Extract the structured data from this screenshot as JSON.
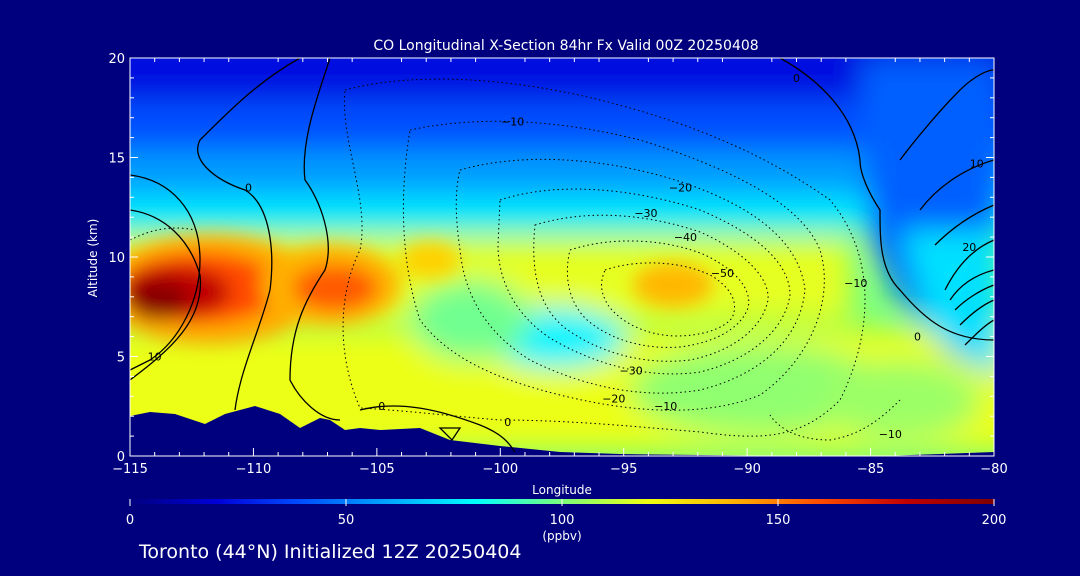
{
  "chart_data": {
    "type": "heatmap",
    "title": "CO Longitudinal X-Section 84hr  Fx Valid 00Z 20250408",
    "xlabel": "Longitude",
    "ylabel": "Altitude (km)",
    "xlim": [
      -115,
      -80
    ],
    "ylim": [
      0,
      20
    ],
    "x_ticks": [
      "-115",
      "-110",
      "-105",
      "-100",
      "-95",
      "-90",
      "-85",
      "-80"
    ],
    "y_ticks": [
      "0",
      "5",
      "10",
      "15",
      "20"
    ],
    "colorbar": {
      "min": 0,
      "max": 200,
      "ticks": [
        "0",
        "50",
        "100",
        "150",
        "200"
      ],
      "unit": "(ppbv)",
      "colors": [
        "#00007f",
        "#0000d8",
        "#0050ff",
        "#00a8ff",
        "#00ffff",
        "#7cff7a",
        "#f0ff10",
        "#ffb000",
        "#ff4a00",
        "#c00000",
        "#7f0000"
      ]
    },
    "fields": [
      {
        "lon": -113,
        "alt": 8.8,
        "value": 185
      },
      {
        "lon": -107,
        "alt": 8.7,
        "value": 160
      },
      {
        "lon": -93,
        "alt": 8.5,
        "value": 138
      },
      {
        "lon": -97.5,
        "alt": 5.8,
        "value": 100
      },
      {
        "lon": -112,
        "alt": 18,
        "value": 30
      },
      {
        "lon": -90,
        "alt": 17,
        "value": 35
      }
    ],
    "contour_labels": [
      {
        "text": "0",
        "lon": -110.2,
        "alt": 13.3
      },
      {
        "text": "-10",
        "lon": -99.5,
        "alt": 16.6
      },
      {
        "text": "0",
        "lon": -88,
        "alt": 18.8
      },
      {
        "text": "-20",
        "lon": -92.7,
        "alt": 13.3
      },
      {
        "text": "-30",
        "lon": -94.1,
        "alt": 12.0
      },
      {
        "text": "-40",
        "lon": -92.5,
        "alt": 10.8
      },
      {
        "text": "-50",
        "lon": -91,
        "alt": 9.0
      },
      {
        "text": "-30",
        "lon": -94.7,
        "alt": 4.1
      },
      {
        "text": "-20",
        "lon": -95.4,
        "alt": 2.7
      },
      {
        "text": "-10",
        "lon": -93.3,
        "alt": 2.3
      },
      {
        "text": "-10",
        "lon": -84.2,
        "alt": 0.9
      },
      {
        "text": "-10",
        "lon": -85.6,
        "alt": 8.5
      },
      {
        "text": "10",
        "lon": -114,
        "alt": 4.8
      },
      {
        "text": "0",
        "lon": -104.8,
        "alt": 2.3
      },
      {
        "text": "0",
        "lon": -99.7,
        "alt": 1.5
      },
      {
        "text": "0",
        "lon": -83.1,
        "alt": 5.8
      },
      {
        "text": "10",
        "lon": -80.7,
        "alt": 14.5
      },
      {
        "text": "20",
        "lon": -81,
        "alt": 10.3
      }
    ]
  },
  "footer": "Toronto (44°N) Initialized 12Z 20250404"
}
